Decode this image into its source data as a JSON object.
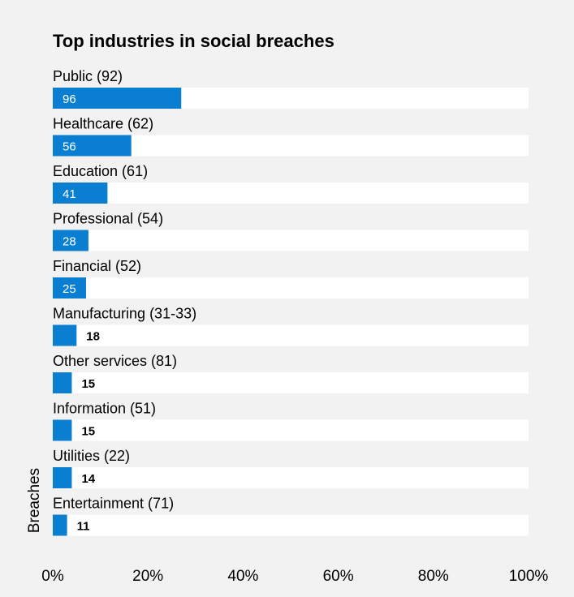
{
  "chart_data": {
    "type": "bar",
    "orientation": "horizontal",
    "title": "Top industries in social breaches",
    "ylabel": "Breaches",
    "xlabel": "",
    "xlim": [
      0,
      100
    ],
    "x_ticks": [
      "0%",
      "20%",
      "40%",
      "60%",
      "80%",
      "100%"
    ],
    "x_tick_values": [
      0,
      20,
      40,
      60,
      80,
      100
    ],
    "grid": false,
    "bar_color": "#0a7fd2",
    "track_color": "#ffffff",
    "categories": [
      "Public (92)",
      "Healthcare (62)",
      "Education (61)",
      "Professional (54)",
      "Financial (52)",
      "Manufacturing (31-33)",
      "Other services (81)",
      "Information (51)",
      "Utilities (22)",
      "Entertainment (71)"
    ],
    "values": [
      27,
      16.5,
      11.5,
      7.5,
      7,
      5,
      4,
      4,
      4,
      3
    ],
    "data_labels": [
      "96",
      "56",
      "41",
      "28",
      "25",
      "18",
      "15",
      "15",
      "14",
      "11"
    ]
  }
}
